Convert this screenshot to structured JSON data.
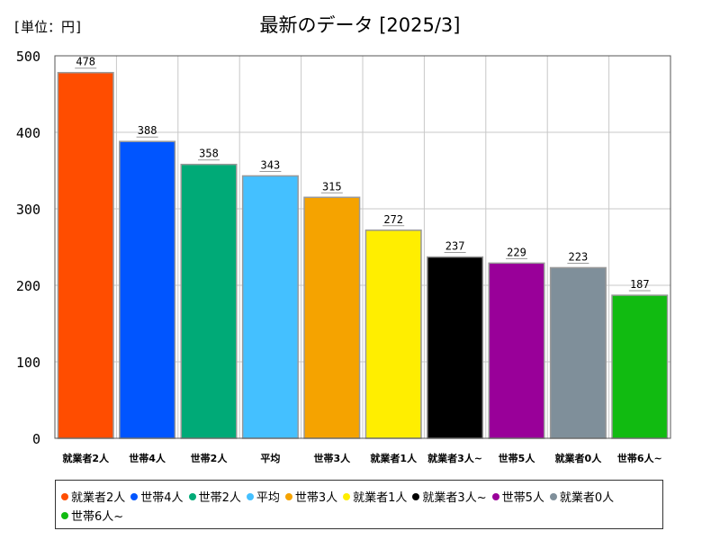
{
  "header": {
    "unit": "[単位：円]",
    "title": "最新のデータ [2025/3]"
  },
  "chart_data": {
    "type": "bar",
    "categories": [
      "就業者2人",
      "世帯4人",
      "世帯2人",
      "平均",
      "世帯3人",
      "就業者1人",
      "就業者3人~",
      "世帯5人",
      "就業者0人",
      "世帯6人~"
    ],
    "values": [
      478,
      388,
      358,
      343,
      315,
      272,
      237,
      229,
      223,
      187
    ],
    "colors": [
      "#ff4d00",
      "#0055ff",
      "#00aa77",
      "#44c0ff",
      "#f5a300",
      "#ffee00",
      "#000000",
      "#990099",
      "#7f8f9a",
      "#11bb11"
    ],
    "ylim": [
      0,
      500
    ],
    "yticks": [
      0,
      100,
      200,
      300,
      400,
      500
    ],
    "grid": true,
    "legend_position": "bottom",
    "title": "最新のデータ [2025/3]",
    "unit_label": "[単位：円]"
  }
}
